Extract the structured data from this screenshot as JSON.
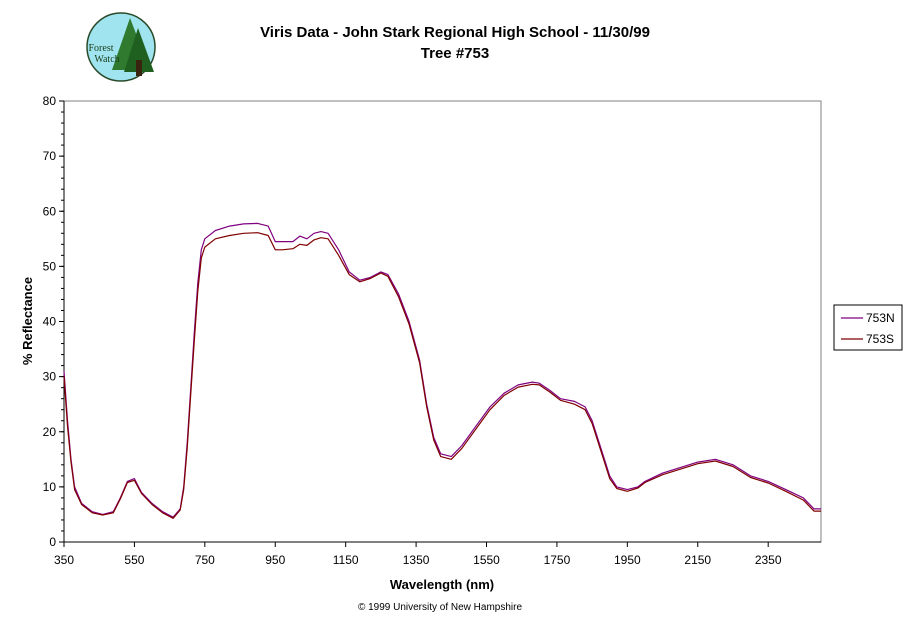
{
  "logo": {
    "line1": "Forest",
    "line2": "Watch"
  },
  "copyright": "© 1999 University of New Hampshire",
  "chart_data": {
    "type": "line",
    "title": "Viris Data - John Stark Regional High School - 11/30/99",
    "subtitle": "Tree #753",
    "xlabel": "Wavelength (nm)",
    "ylabel": "% Reflectance",
    "xlim": [
      350,
      2500
    ],
    "ylim": [
      0,
      80
    ],
    "xticks": [
      350,
      550,
      750,
      950,
      1150,
      1350,
      1550,
      1750,
      1950,
      2150,
      2350
    ],
    "yticks": [
      0,
      10,
      20,
      30,
      40,
      50,
      60,
      70,
      80
    ],
    "grid": false,
    "legend_position": "right",
    "series": [
      {
        "name": "753N",
        "color": "#800080",
        "x": [
          350,
          360,
          370,
          380,
          400,
          430,
          460,
          490,
          510,
          530,
          550,
          570,
          600,
          630,
          660,
          680,
          690,
          700,
          710,
          720,
          730,
          740,
          750,
          780,
          820,
          860,
          900,
          930,
          950,
          970,
          1000,
          1020,
          1040,
          1060,
          1080,
          1100,
          1130,
          1160,
          1190,
          1220,
          1250,
          1270,
          1300,
          1330,
          1360,
          1380,
          1400,
          1420,
          1450,
          1480,
          1520,
          1560,
          1600,
          1640,
          1680,
          1700,
          1730,
          1760,
          1800,
          1830,
          1850,
          1880,
          1900,
          1920,
          1950,
          1980,
          2000,
          2050,
          2100,
          2150,
          2200,
          2250,
          2300,
          2350,
          2400,
          2450,
          2480,
          2500
        ],
        "y": [
          31,
          22,
          15,
          10,
          7,
          5.5,
          5,
          5.5,
          8,
          11,
          11.5,
          9,
          7,
          5.5,
          4.5,
          6,
          10,
          18,
          28,
          38,
          47,
          53,
          55,
          56.5,
          57.3,
          57.7,
          57.8,
          57.3,
          54.5,
          54.5,
          54.5,
          55.5,
          55,
          56,
          56.3,
          56,
          53,
          49,
          47.5,
          48,
          49,
          48.5,
          45,
          40,
          33,
          25,
          19,
          16,
          15.5,
          17.5,
          21,
          24.5,
          27,
          28.5,
          29,
          28.8,
          27.5,
          26,
          25.5,
          24.5,
          22,
          16,
          12,
          10,
          9.5,
          10,
          11,
          12.5,
          13.5,
          14.5,
          15,
          14,
          12,
          11,
          9.5,
          8,
          6,
          6
        ]
      },
      {
        "name": "753S",
        "color": "#800000",
        "x": [
          350,
          360,
          370,
          380,
          400,
          430,
          460,
          490,
          510,
          530,
          550,
          570,
          600,
          630,
          660,
          680,
          690,
          700,
          710,
          720,
          730,
          740,
          750,
          780,
          820,
          860,
          900,
          930,
          950,
          970,
          1000,
          1020,
          1040,
          1060,
          1080,
          1100,
          1130,
          1160,
          1190,
          1220,
          1250,
          1270,
          1300,
          1330,
          1360,
          1380,
          1400,
          1420,
          1450,
          1480,
          1520,
          1560,
          1600,
          1640,
          1680,
          1700,
          1730,
          1760,
          1800,
          1830,
          1850,
          1880,
          1900,
          1920,
          1950,
          1980,
          2000,
          2050,
          2100,
          2150,
          2200,
          2250,
          2300,
          2350,
          2400,
          2450,
          2480,
          2500
        ],
        "y": [
          30,
          21,
          14.5,
          9.5,
          6.8,
          5.3,
          4.9,
          5.3,
          7.8,
          10.8,
          11.2,
          8.8,
          6.8,
          5.3,
          4.3,
          5.8,
          9.5,
          17,
          27,
          36.5,
          45.5,
          51.5,
          53.5,
          55,
          55.6,
          56,
          56.1,
          55.6,
          53,
          53,
          53.2,
          54,
          53.8,
          54.8,
          55.2,
          55,
          52,
          48.5,
          47.2,
          47.8,
          48.8,
          48.2,
          44.5,
          39.5,
          32.5,
          24.5,
          18.5,
          15.5,
          15,
          17,
          20.5,
          24,
          26.6,
          28.1,
          28.6,
          28.5,
          27.2,
          25.7,
          25,
          24,
          21.5,
          15.5,
          11.5,
          9.7,
          9.2,
          9.8,
          10.8,
          12.2,
          13.2,
          14.2,
          14.7,
          13.7,
          11.7,
          10.7,
          9.2,
          7.6,
          5.6,
          5.6
        ]
      }
    ]
  }
}
